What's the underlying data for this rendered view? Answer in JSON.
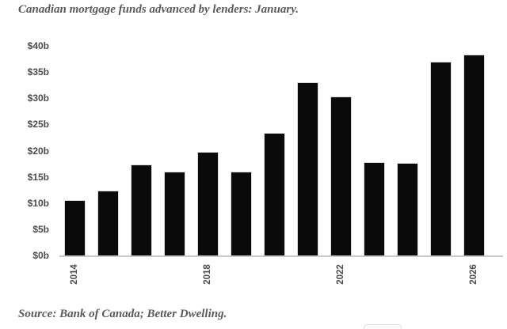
{
  "colors": {
    "bar": "#0a0a0a",
    "bar_border": "#d9d9d9",
    "title_text": "#595a5c",
    "axis_label_text": "#4c4c4c",
    "axis_line": "#c9c9c9",
    "background": "#ffffff"
  },
  "chart_data": {
    "type": "bar",
    "title": "Canadian mortgage funds advanced by lenders: January.",
    "categories": [
      "2014",
      "2015",
      "2016",
      "2017",
      "2018",
      "2019",
      "2020",
      "2021",
      "2022",
      "2023",
      "2024",
      "2025",
      "2026"
    ],
    "values": [
      10.5,
      12.4,
      17.3,
      16.0,
      19.7,
      16.0,
      23.4,
      33.0,
      30.3,
      17.8,
      17.7,
      37.0,
      38.3
    ],
    "values_unit": "billions CAD",
    "xlabel": "",
    "ylabel": "",
    "ylim": [
      0,
      40
    ],
    "ytick_interval": 5,
    "ytick_labels": [
      "$0b",
      "$5b",
      "$10b",
      "$15b",
      "$20b",
      "$25b",
      "$30b",
      "$35b",
      "$40b"
    ],
    "xtick_labels_shown": [
      "2014",
      "2018",
      "2022",
      "2026"
    ],
    "xtick_rotation": -90,
    "grid": false,
    "legend": false,
    "bar_color": "#0a0a0a"
  },
  "footer": {
    "source": "Source: Bank of Canada; Better Dwelling."
  }
}
